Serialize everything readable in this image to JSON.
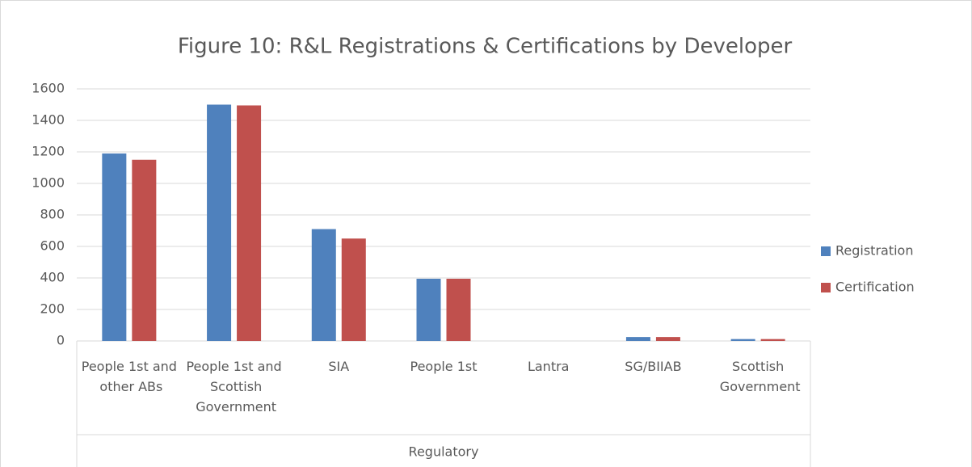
{
  "chart_data": {
    "type": "bar",
    "title": "Figure 10: R&L Registrations & Certifications by Developer",
    "categories": [
      "People 1st and other ABs",
      "People 1st and Scottish Government",
      "SIA",
      "People 1st",
      "Lantra",
      "SG/BIIAB",
      "Scottish Government"
    ],
    "category_group": "Regulatory",
    "series": [
      {
        "name": "Registration",
        "color": "#4f81bd",
        "values": [
          1190,
          1500,
          710,
          395,
          0,
          25,
          12
        ]
      },
      {
        "name": "Certification",
        "color": "#c0504d",
        "values": [
          1150,
          1495,
          650,
          395,
          0,
          25,
          12
        ]
      }
    ],
    "ylim": [
      0,
      1600
    ],
    "yticks": [
      0,
      200,
      400,
      600,
      800,
      1000,
      1200,
      1400,
      1600
    ],
    "grid": true,
    "legend": "right"
  }
}
